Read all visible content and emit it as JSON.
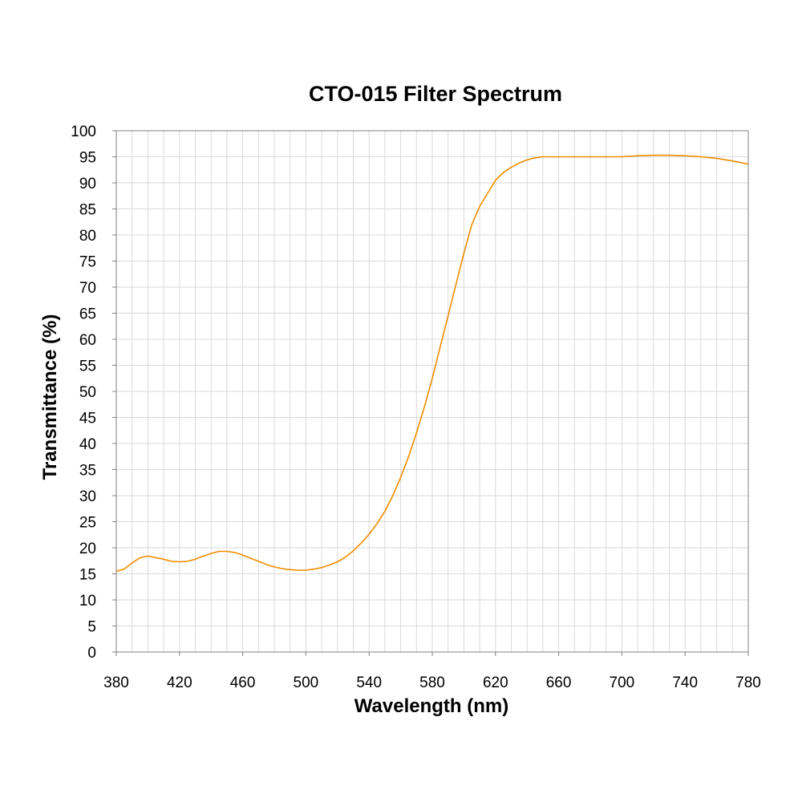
{
  "chart_data": {
    "type": "line",
    "title": "CTO-015 Filter Spectrum",
    "xlabel": "Wavelength (nm)",
    "ylabel": "Transmittance (%)",
    "xlim": [
      380,
      780
    ],
    "ylim": [
      0,
      100
    ],
    "x_ticks": [
      "380",
      "420",
      "460",
      "500",
      "540",
      "580",
      "620",
      "660",
      "700",
      "740",
      "780"
    ],
    "y_ticks": [
      "0",
      "5",
      "10",
      "15",
      "20",
      "25",
      "30",
      "35",
      "40",
      "45",
      "50",
      "55",
      "60",
      "65",
      "70",
      "75",
      "80",
      "85",
      "90",
      "95",
      "100"
    ],
    "grid": true,
    "line_color": "#F08C00",
    "series": [
      {
        "x": [
          380,
          385,
          390,
          395,
          400,
          405,
          410,
          415,
          420,
          425,
          430,
          435,
          440,
          445,
          450,
          455,
          460,
          465,
          470,
          475,
          480,
          485,
          490,
          495,
          500,
          505,
          510,
          515,
          520,
          525,
          530,
          535,
          540,
          545,
          550,
          555,
          560,
          565,
          570,
          575,
          580,
          585,
          590,
          595,
          600,
          605,
          610,
          615,
          620,
          625,
          630,
          635,
          640,
          645,
          650,
          655,
          660,
          670,
          680,
          690,
          700,
          710,
          720,
          730,
          740,
          750,
          760,
          770,
          780
        ],
        "y": [
          15.5,
          15.9,
          17.1,
          18.1,
          18.4,
          18.1,
          17.8,
          17.4,
          17.3,
          17.4,
          17.8,
          18.4,
          18.9,
          19.3,
          19.3,
          19.1,
          18.6,
          18.0,
          17.4,
          16.8,
          16.3,
          16.0,
          15.8,
          15.7,
          15.7,
          15.9,
          16.2,
          16.7,
          17.3,
          18.2,
          19.4,
          20.9,
          22.6,
          24.6,
          27.0,
          30.0,
          33.5,
          37.5,
          42.0,
          47.0,
          52.5,
          58.5,
          64.5,
          70.5,
          76.5,
          82.0,
          85.5,
          88.0,
          90.5,
          92.0,
          93.0,
          93.8,
          94.4,
          94.8,
          95.0,
          95.0,
          95.0,
          95.0,
          95.0,
          95.0,
          95.0,
          95.2,
          95.3,
          95.3,
          95.2,
          95.0,
          94.7,
          94.2,
          93.6
        ]
      }
    ]
  }
}
